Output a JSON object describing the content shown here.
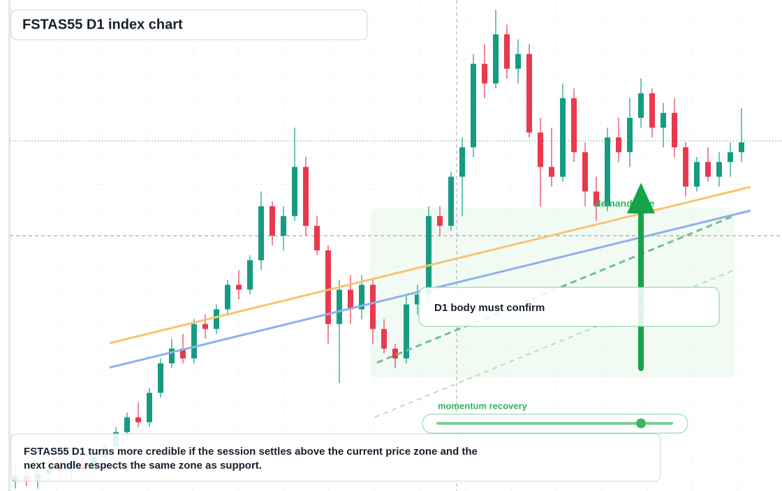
{
  "chart_data": {
    "type": "candlestick",
    "title": "FSTAS55 D1 index chart",
    "up_color": "#149c82",
    "down_color": "#e8394f",
    "ylim": [
      0,
      100
    ],
    "open": [
      2,
      3,
      2,
      3.5,
      5,
      4,
      5.5,
      4.5,
      7,
      9,
      12,
      15,
      14,
      20,
      26,
      29,
      27,
      34,
      33,
      37,
      42,
      41,
      47,
      58,
      52,
      56,
      66,
      54,
      49,
      34,
      41,
      37,
      42,
      33,
      29,
      27,
      38,
      40,
      56,
      54,
      64,
      70,
      87,
      83,
      93,
      86,
      89,
      73,
      66,
      64,
      80,
      69,
      61,
      58,
      72,
      69,
      76,
      81,
      74,
      77,
      70,
      62,
      67,
      64,
      67,
      69
    ],
    "high": [
      5,
      5,
      4,
      6,
      7,
      6,
      7,
      8,
      10,
      13,
      16,
      18,
      21,
      27,
      31,
      32,
      35,
      36,
      38,
      43,
      45,
      48,
      61,
      59,
      58,
      74,
      68,
      56,
      50,
      43,
      44,
      44,
      43,
      35,
      30,
      40,
      42,
      58,
      58,
      65,
      72,
      89,
      91,
      98,
      95,
      92,
      91,
      76,
      74,
      83,
      82,
      71,
      64,
      74,
      76,
      80,
      84,
      82,
      79,
      80,
      71,
      68,
      70,
      69,
      71,
      78
    ],
    "low": [
      0.5,
      1,
      0.5,
      2,
      3,
      2,
      3,
      3,
      5,
      8,
      10,
      13,
      13,
      19,
      25,
      26,
      26,
      31,
      32,
      36,
      39,
      40,
      45,
      50,
      49,
      55,
      52,
      48,
      30,
      22,
      34,
      35,
      30,
      28,
      25,
      26,
      36,
      39,
      52,
      53,
      56,
      68,
      80,
      82,
      84,
      83,
      72,
      58,
      62,
      63,
      67,
      58,
      55,
      57,
      67,
      66,
      74,
      72,
      70,
      68,
      60,
      61,
      63,
      62,
      64,
      67
    ],
    "close": [
      3,
      2,
      3.5,
      5,
      4,
      5.5,
      4.5,
      7,
      9,
      12,
      15,
      14,
      20,
      26,
      29,
      27,
      34,
      33,
      37,
      42,
      41,
      47,
      58,
      52,
      56,
      66,
      54,
      49,
      34,
      41,
      37,
      42,
      33,
      29,
      27,
      38,
      40,
      56,
      54,
      64,
      70,
      87,
      83,
      93,
      86,
      89,
      73,
      66,
      64,
      80,
      69,
      61,
      58,
      72,
      69,
      76,
      81,
      74,
      77,
      70,
      62,
      67,
      64,
      67,
      69,
      71
    ],
    "annotations": [
      "D1 body must confirm",
      "demand side",
      "momentum recovery"
    ],
    "note": "FSTAS55 D1 turns more credible if the session settles above the current price zone and the next candle respects the same zone as support."
  }
}
